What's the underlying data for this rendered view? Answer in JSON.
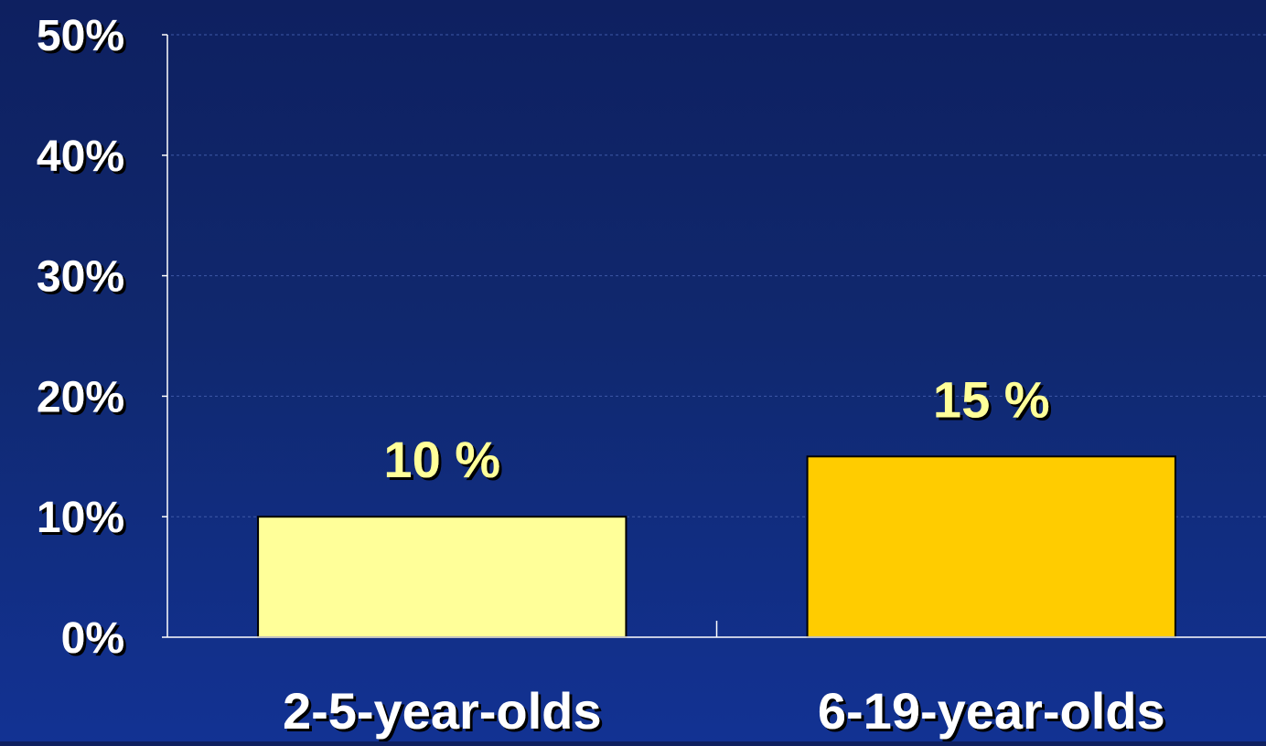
{
  "chart_data": {
    "type": "bar",
    "title": "",
    "xlabel": "",
    "ylabel": "",
    "categories": [
      "2-5-year-olds",
      "6-19-year-olds"
    ],
    "values": [
      10,
      15
    ],
    "data_labels": [
      "10 %",
      "15 %"
    ],
    "ylim": [
      0,
      50
    ],
    "y_ticks": [
      0,
      10,
      20,
      30,
      40,
      50
    ],
    "y_tick_labels": [
      "0%",
      "10%",
      "20%",
      "30%",
      "40%",
      "50%"
    ],
    "grid": true,
    "legend": "none",
    "colors": {
      "background": "#10286e",
      "bars": [
        "#ffff99",
        "#ffcc00"
      ],
      "bar_outline": "#000000",
      "axis": "#ffffff",
      "text": "#ffffff",
      "data_label": "#ffff99",
      "gridline": "#3f59a8"
    }
  }
}
